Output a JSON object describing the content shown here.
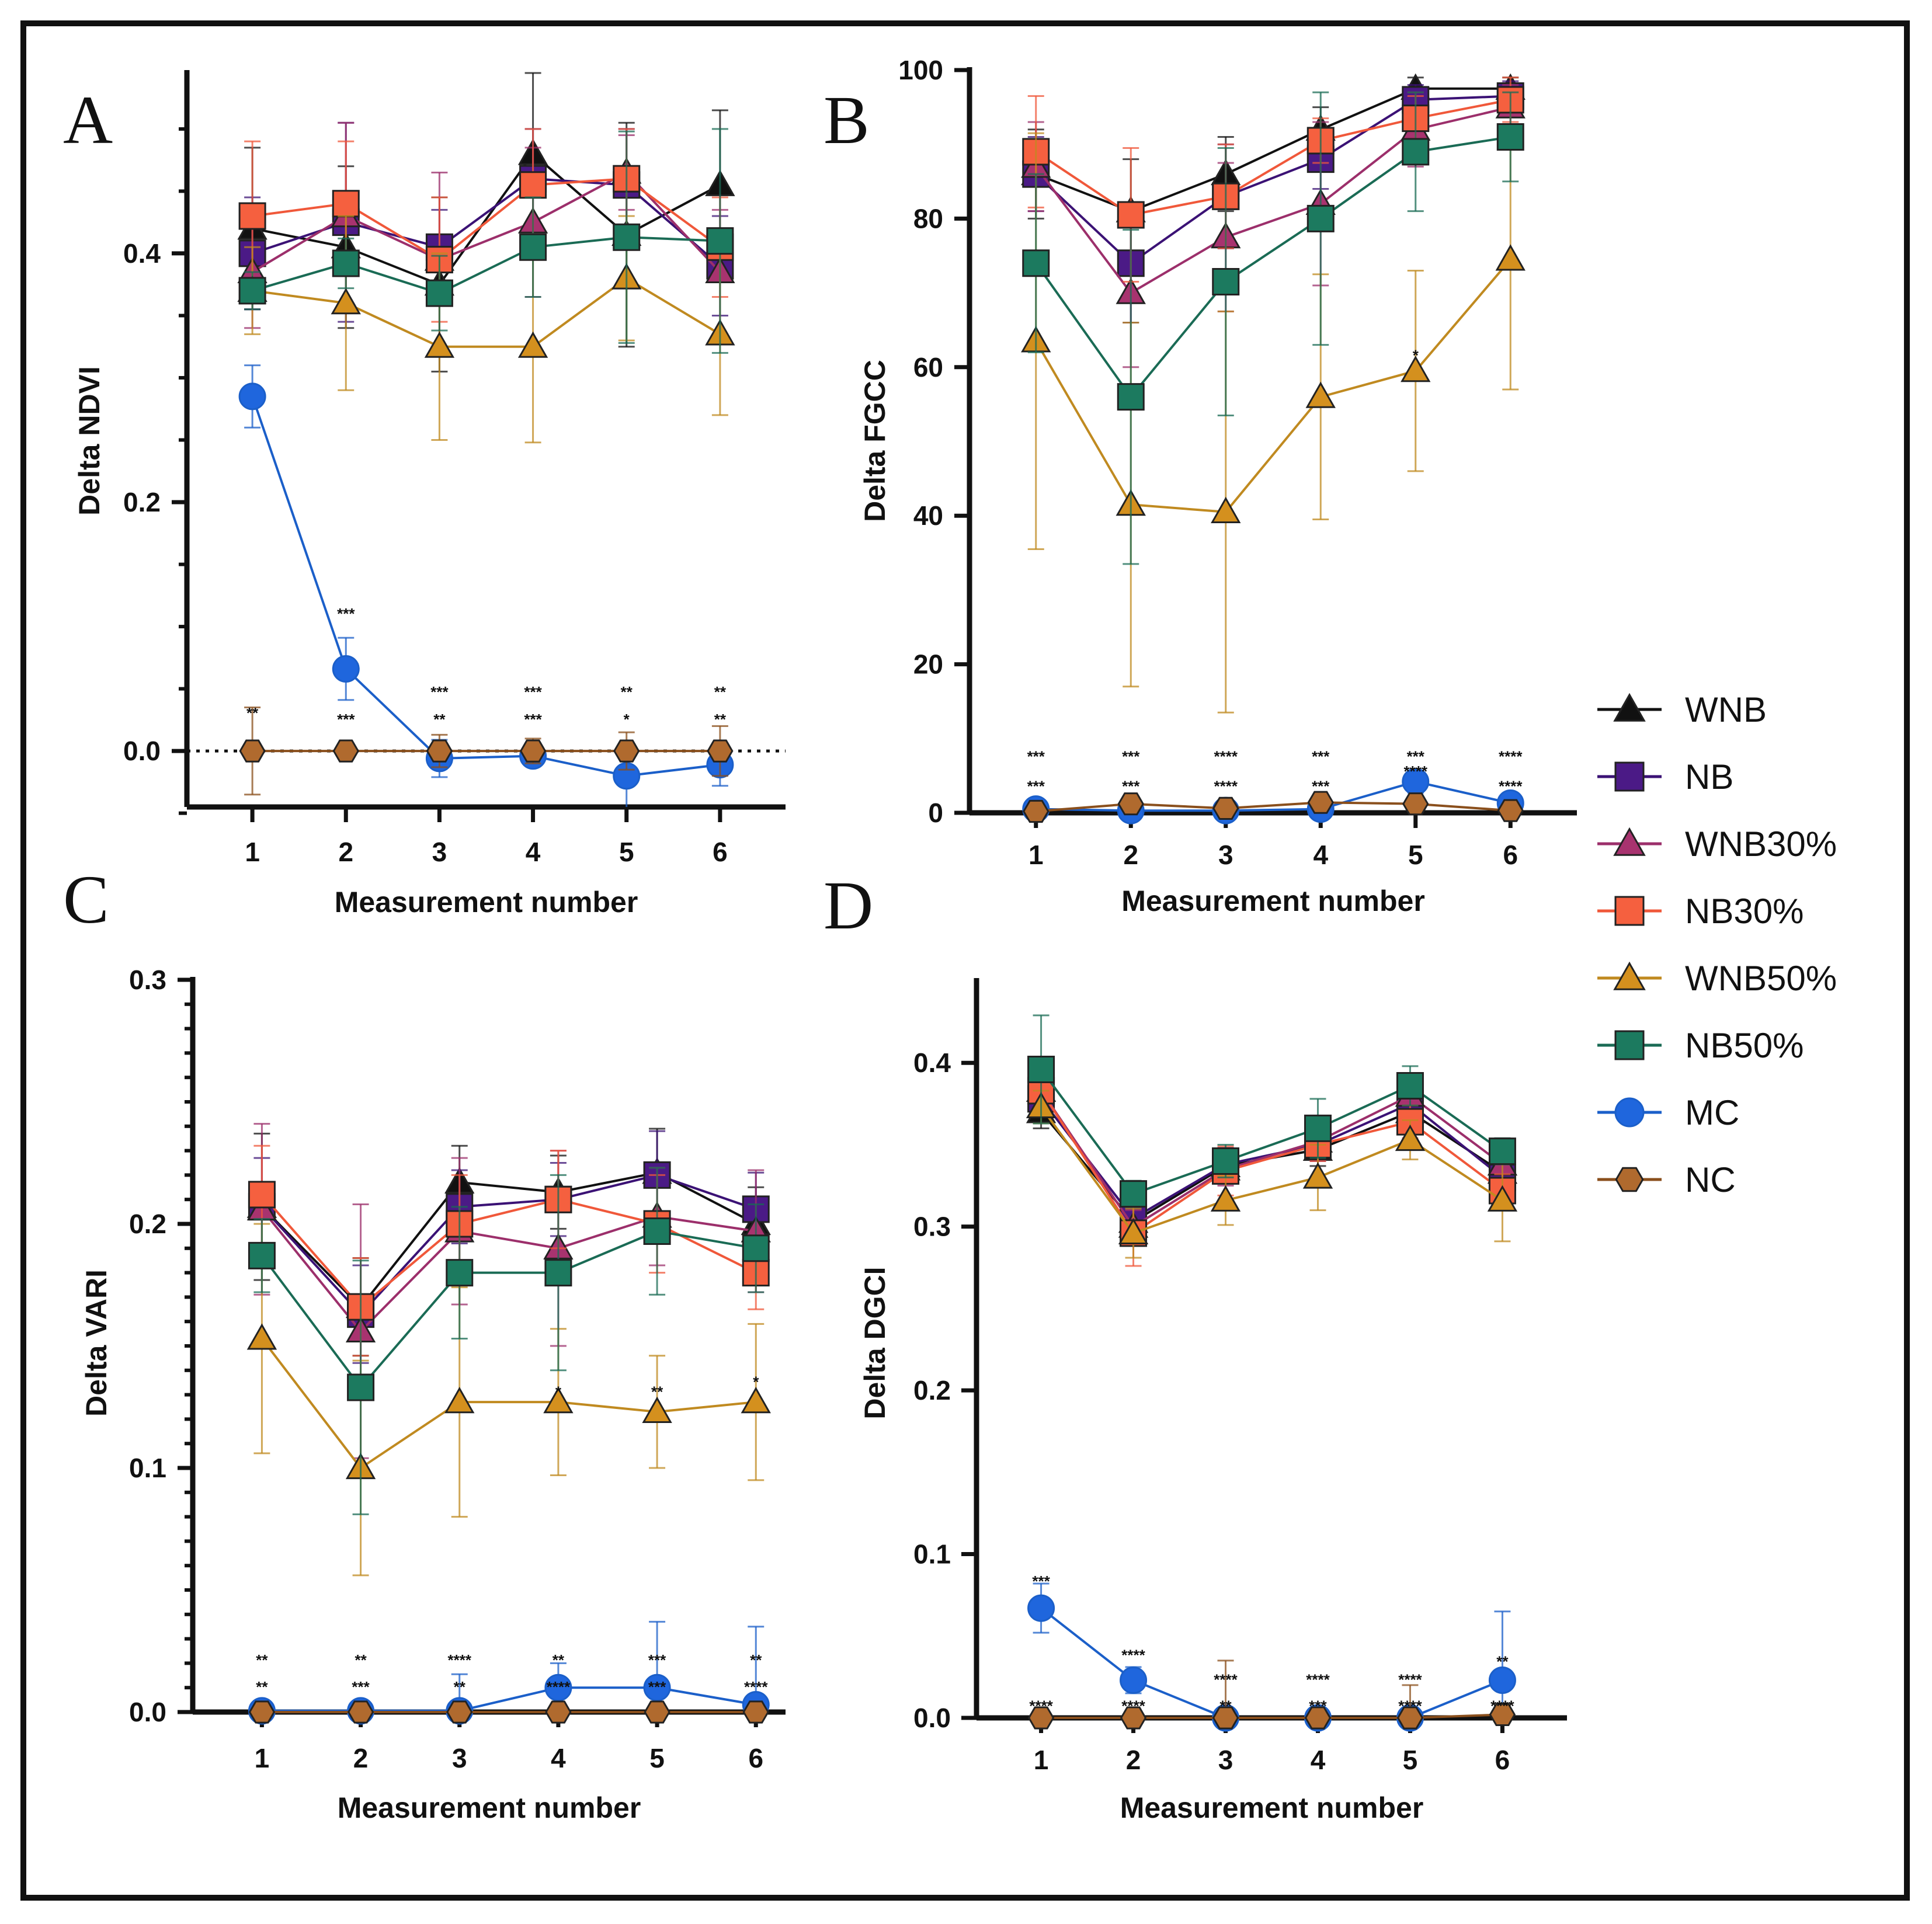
{
  "legend": [
    {
      "name": "WNB",
      "marker": "triangle",
      "color": "#111111",
      "fill": "#111111"
    },
    {
      "name": "NB",
      "marker": "square",
      "color": "#3b1275",
      "fill": "#4b1a86"
    },
    {
      "name": "WNB30%",
      "marker": "triangle",
      "color": "#9c2f6b",
      "fill": "#a8336f"
    },
    {
      "name": "NB30%",
      "marker": "square",
      "color": "#f0583a",
      "fill": "#f5603f"
    },
    {
      "name": "WNB50%",
      "marker": "triangle",
      "color": "#c08a20",
      "fill": "#d4901e"
    },
    {
      "name": "NB50%",
      "marker": "square",
      "color": "#1a6b55",
      "fill": "#1c7a5f"
    },
    {
      "name": "MC",
      "marker": "circle",
      "color": "#1b5fc9",
      "fill": "#1f66dd"
    },
    {
      "name": "NC",
      "marker": "hexagon",
      "color": "#8a4f1c",
      "fill": "#b06a2e"
    }
  ],
  "chart_data": [
    {
      "panel": "A",
      "type": "line",
      "xlabel": "Measurement number",
      "ylabel": "Delta NDVI",
      "x": [
        1,
        2,
        3,
        4,
        5,
        6
      ],
      "xlim": [
        0.3,
        6.7
      ],
      "ylim": [
        -0.045,
        0.545
      ],
      "yticks": [
        0.0,
        0.2,
        0.4
      ],
      "ytick_labels": [
        "0.0",
        "0.2",
        "0.4"
      ],
      "zero_line": true,
      "series": [
        {
          "name": "WNB",
          "values": [
            0.42,
            0.405,
            0.375,
            0.48,
            0.415,
            0.455
          ],
          "err": [
            0.065,
            0.065,
            0.07,
            0.07,
            0.09,
            0.06
          ]
        },
        {
          "name": "NB",
          "values": [
            0.4,
            0.425,
            0.405,
            0.46,
            0.455,
            0.39
          ],
          "err": [
            0.045,
            0.08,
            0.03,
            0.04,
            0.045,
            0.04
          ]
        },
        {
          "name": "WNB30%",
          "values": [
            0.385,
            0.43,
            0.395,
            0.425,
            0.465,
            0.385
          ],
          "err": [
            0.045,
            0.075,
            0.07,
            0.06,
            0.03,
            0.05
          ]
        },
        {
          "name": "NB30%",
          "values": [
            0.43,
            0.44,
            0.395,
            0.455,
            0.46,
            0.405
          ],
          "err": [
            0.06,
            0.05,
            0.05,
            0.045,
            0.04,
            0.04
          ]
        },
        {
          "name": "WNB50%",
          "values": [
            0.37,
            0.36,
            0.325,
            0.325,
            0.38,
            0.335
          ],
          "err": [
            0.035,
            0.07,
            0.075,
            0.077,
            0.05,
            0.065
          ]
        },
        {
          "name": "NB50%",
          "values": [
            0.37,
            0.392,
            0.368,
            0.405,
            0.413,
            0.41
          ],
          "err": [
            0.015,
            0.02,
            0.03,
            0.04,
            0.085,
            0.09
          ]
        },
        {
          "name": "MC",
          "values": [
            0.285,
            0.066,
            -0.006,
            -0.004,
            -0.02,
            -0.011
          ],
          "err": [
            0.025,
            0.025,
            0.015,
            0.006,
            0.025,
            0.017
          ]
        },
        {
          "name": "NC",
          "values": [
            0,
            0,
            0,
            0,
            0,
            0
          ],
          "err": [
            0.035,
            0.005,
            0.013,
            0.01,
            0.015,
            0.02
          ]
        }
      ],
      "annotations": [
        {
          "x": 1,
          "y": 0.03,
          "text": "**"
        },
        {
          "x": 2,
          "y": 0.025,
          "text": "***"
        },
        {
          "x": 2,
          "y": 0.11,
          "text": "***"
        },
        {
          "x": 3,
          "y": 0.025,
          "text": "**"
        },
        {
          "x": 3,
          "y": 0.047,
          "text": "***"
        },
        {
          "x": 4,
          "y": 0.025,
          "text": "***"
        },
        {
          "x": 4,
          "y": 0.047,
          "text": "***"
        },
        {
          "x": 5,
          "y": 0.025,
          "text": "*"
        },
        {
          "x": 5,
          "y": 0.047,
          "text": "**"
        },
        {
          "x": 6,
          "y": 0.025,
          "text": "**"
        },
        {
          "x": 6,
          "y": 0.047,
          "text": "**"
        }
      ]
    },
    {
      "panel": "B",
      "type": "line",
      "xlabel": "Measurement number",
      "ylabel": "Delta FGCC",
      "x": [
        1,
        2,
        3,
        4,
        5,
        6
      ],
      "xlim": [
        0.3,
        6.7
      ],
      "ylim": [
        0,
        100
      ],
      "yticks": [
        0,
        20,
        40,
        60,
        80,
        100
      ],
      "ytick_labels": [
        "0",
        "20",
        "40",
        "60",
        "80",
        "100"
      ],
      "zero_line": false,
      "series": [
        {
          "name": "WNB",
          "values": [
            86,
            81,
            86,
            92,
            97.5,
            97.5
          ],
          "err": [
            6,
            7,
            5,
            3,
            1.5,
            1.5
          ]
        },
        {
          "name": "NB",
          "values": [
            86,
            74,
            83,
            88,
            96,
            96.5
          ],
          "err": [
            5,
            8,
            7,
            4,
            2,
            2
          ]
        },
        {
          "name": "WNB30%",
          "values": [
            87,
            70,
            77.5,
            82,
            92,
            95
          ],
          "err": [
            6,
            10,
            10,
            11,
            5,
            3
          ]
        },
        {
          "name": "NB30%",
          "values": [
            89,
            80.5,
            83,
            90.5,
            93.5,
            96
          ],
          "err": [
            7.5,
            9,
            7,
            3,
            3,
            3
          ]
        },
        {
          "name": "WNB50%",
          "values": [
            63.5,
            41.5,
            40.5,
            56,
            59.5,
            74.5
          ],
          "err": [
            28,
            24.5,
            27,
            16.5,
            13.5,
            17.5
          ]
        },
        {
          "name": "NB50%",
          "values": [
            74,
            56,
            71.5,
            80,
            89,
            91
          ],
          "err": [
            12,
            22.5,
            18,
            17,
            8,
            6
          ]
        },
        {
          "name": "MC",
          "values": [
            0.5,
            0.3,
            0.3,
            0.5,
            4.2,
            1.3
          ],
          "err": [
            0.3,
            0.3,
            0.3,
            0.3,
            1.5,
            0.5
          ]
        },
        {
          "name": "NC",
          "values": [
            0.2,
            1.2,
            0.6,
            1.4,
            1.2,
            0.3
          ],
          "err": [
            0.2,
            0.3,
            0.3,
            0.3,
            0.3,
            0.2
          ]
        }
      ],
      "annotations": [
        {
          "x": 1,
          "y": 3.5,
          "text": "***"
        },
        {
          "x": 1,
          "y": 7.5,
          "text": "***"
        },
        {
          "x": 2,
          "y": 3.5,
          "text": "***"
        },
        {
          "x": 2,
          "y": 7.5,
          "text": "***"
        },
        {
          "x": 3,
          "y": 3.5,
          "text": "****"
        },
        {
          "x": 3,
          "y": 7.5,
          "text": "****"
        },
        {
          "x": 4,
          "y": 3.5,
          "text": "***"
        },
        {
          "x": 4,
          "y": 7.5,
          "text": "***"
        },
        {
          "x": 5,
          "y": 5.5,
          "text": "****"
        },
        {
          "x": 5,
          "y": 7.5,
          "text": "***"
        },
        {
          "x": 6,
          "y": 3.5,
          "text": "****"
        },
        {
          "x": 6,
          "y": 7.5,
          "text": "****"
        },
        {
          "x": 5,
          "y": 61.5,
          "text": "*"
        }
      ]
    },
    {
      "panel": "C",
      "type": "line",
      "xlabel": "Measurement number",
      "ylabel": "Delta VARI",
      "x": [
        1,
        2,
        3,
        4,
        5,
        6
      ],
      "xlim": [
        0.3,
        6.3
      ],
      "ylim": [
        0,
        0.3
      ],
      "yticks": [
        0.0,
        0.1,
        0.2,
        0.3
      ],
      "ytick_labels": [
        "0.0",
        "0.1",
        "0.2",
        "0.3"
      ],
      "zero_line": false,
      "series": [
        {
          "name": "WNB",
          "values": [
            0.207,
            0.166,
            0.217,
            0.213,
            0.221,
            0.2
          ],
          "err": [
            0.03,
            0.02,
            0.015,
            0.015,
            0.018,
            0.015
          ]
        },
        {
          "name": "NB",
          "values": [
            0.207,
            0.163,
            0.207,
            0.21,
            0.22,
            0.206
          ],
          "err": [
            0.02,
            0.02,
            0.015,
            0.015,
            0.018,
            0.015
          ]
        },
        {
          "name": "WNB30%",
          "values": [
            0.206,
            0.156,
            0.197,
            0.19,
            0.203,
            0.197
          ],
          "err": [
            0.035,
            0.052,
            0.03,
            0.04,
            0.02,
            0.025
          ]
        },
        {
          "name": "NB30%",
          "values": [
            0.212,
            0.166,
            0.2,
            0.21,
            0.2,
            0.18
          ],
          "err": [
            0.02,
            0.02,
            0.02,
            0.02,
            0.02,
            0.015
          ]
        },
        {
          "name": "WNB50%",
          "values": [
            0.153,
            0.1,
            0.127,
            0.127,
            0.123,
            0.127
          ],
          "err": [
            0.047,
            0.044,
            0.047,
            0.03,
            0.023,
            0.032
          ]
        },
        {
          "name": "NB50%",
          "values": [
            0.187,
            0.133,
            0.18,
            0.18,
            0.197,
            0.19
          ],
          "err": [
            0.015,
            0.052,
            0.027,
            0.04,
            0.026,
            0.018
          ]
        },
        {
          "name": "MC",
          "values": [
            0.0005,
            0.0005,
            0.0005,
            0.01,
            0.01,
            0.003
          ],
          "err": [
            0.002,
            0.002,
            0.015,
            0.01,
            0.027,
            0.032
          ]
        },
        {
          "name": "NC",
          "values": [
            0,
            0,
            0,
            0,
            0,
            0
          ],
          "err": [
            0.001,
            0.001,
            0.001,
            0.001,
            0.001,
            0.001
          ]
        }
      ],
      "annotations": [
        {
          "x": 1,
          "y": 0.01,
          "text": "**"
        },
        {
          "x": 1,
          "y": 0.021,
          "text": "**"
        },
        {
          "x": 2,
          "y": 0.01,
          "text": "***"
        },
        {
          "x": 2,
          "y": 0.021,
          "text": "**"
        },
        {
          "x": 3,
          "y": 0.01,
          "text": "**"
        },
        {
          "x": 3,
          "y": 0.021,
          "text": "****"
        },
        {
          "x": 4,
          "y": 0.01,
          "text": "****"
        },
        {
          "x": 4,
          "y": 0.021,
          "text": "**"
        },
        {
          "x": 5,
          "y": 0.01,
          "text": "***"
        },
        {
          "x": 5,
          "y": 0.021,
          "text": "***"
        },
        {
          "x": 6,
          "y": 0.01,
          "text": "****"
        },
        {
          "x": 6,
          "y": 0.021,
          "text": "**"
        },
        {
          "x": 4,
          "y": 0.131,
          "text": "*"
        },
        {
          "x": 5,
          "y": 0.131,
          "text": "**"
        },
        {
          "x": 6,
          "y": 0.135,
          "text": "*"
        }
      ]
    },
    {
      "panel": "D",
      "type": "line",
      "xlabel": "Measurement number",
      "ylabel": "Delta DGCI",
      "x": [
        1,
        2,
        3,
        4,
        5,
        6
      ],
      "xlim": [
        0.3,
        6.7
      ],
      "ylim": [
        0,
        0.45
      ],
      "yticks": [
        0.0,
        0.1,
        0.2,
        0.3,
        0.4
      ],
      "ytick_labels": [
        "0.0",
        "0.1",
        "0.2",
        "0.3",
        "0.4"
      ],
      "zero_line": false,
      "series": [
        {
          "name": "WNB",
          "values": [
            0.37,
            0.303,
            0.337,
            0.347,
            0.37,
            0.333
          ],
          "err": [
            0.01,
            0.01,
            0.01,
            0.01,
            0.01,
            0.01
          ]
        },
        {
          "name": "NB",
          "values": [
            0.378,
            0.305,
            0.338,
            0.35,
            0.375,
            0.33
          ],
          "err": [
            0.01,
            0.01,
            0.01,
            0.01,
            0.01,
            0.01
          ]
        },
        {
          "name": "WNB30%",
          "values": [
            0.383,
            0.3,
            0.335,
            0.352,
            0.38,
            0.338
          ],
          "err": [
            0.01,
            0.01,
            0.01,
            0.01,
            0.01,
            0.01
          ]
        },
        {
          "name": "NB30%",
          "values": [
            0.383,
            0.296,
            0.334,
            0.35,
            0.364,
            0.322
          ],
          "err": [
            0.015,
            0.02,
            0.015,
            0.01,
            0.01,
            0.01
          ]
        },
        {
          "name": "WNB50%",
          "values": [
            0.373,
            0.296,
            0.316,
            0.33,
            0.353,
            0.316
          ],
          "err": [
            0.01,
            0.015,
            0.015,
            0.02,
            0.012,
            0.025
          ]
        },
        {
          "name": "NB50%",
          "values": [
            0.396,
            0.32,
            0.34,
            0.36,
            0.386,
            0.346
          ],
          "err": [
            0.033,
            0.008,
            0.01,
            0.018,
            0.012,
            0.008
          ]
        },
        {
          "name": "MC",
          "values": [
            0.067,
            0.023,
            0.0,
            0.0,
            0.0,
            0.023
          ],
          "err": [
            0.015,
            0.008,
            0.0,
            0.0,
            0.0,
            0.042
          ]
        },
        {
          "name": "NC",
          "values": [
            0,
            0,
            0,
            0,
            0,
            0.002
          ],
          "err": [
            0.001,
            0.001,
            0.035,
            0.001,
            0.02,
            0.002
          ]
        }
      ],
      "annotations": [
        {
          "x": 1,
          "y": 0.007,
          "text": "****"
        },
        {
          "x": 1,
          "y": 0.083,
          "text": "***"
        },
        {
          "x": 2,
          "y": 0.007,
          "text": "****"
        },
        {
          "x": 2,
          "y": 0.038,
          "text": "****"
        },
        {
          "x": 3,
          "y": 0.007,
          "text": "**"
        },
        {
          "x": 3,
          "y": 0.023,
          "text": "****"
        },
        {
          "x": 4,
          "y": 0.007,
          "text": "***"
        },
        {
          "x": 4,
          "y": 0.023,
          "text": "****"
        },
        {
          "x": 5,
          "y": 0.007,
          "text": "****"
        },
        {
          "x": 5,
          "y": 0.023,
          "text": "****"
        },
        {
          "x": 6,
          "y": 0.007,
          "text": "****"
        },
        {
          "x": 6,
          "y": 0.034,
          "text": "**"
        }
      ]
    }
  ]
}
